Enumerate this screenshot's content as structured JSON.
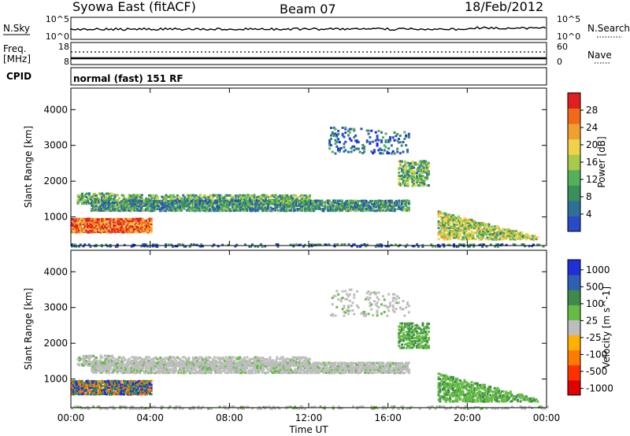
{
  "header": {
    "station": "Syowa East (fitACF)",
    "beam": "Beam 07",
    "date": "18/Feb/2012"
  },
  "top_panel": {
    "left_label": "N.Sky",
    "right_label": "N.Search",
    "y_ticks_left": [
      "10^5",
      "10^0"
    ],
    "y_ticks_right": [
      "10^5",
      "10^0"
    ]
  },
  "freq_panel": {
    "left_label_line1": "Freq.",
    "left_label_line2": "[MHz]",
    "right_label": "Nave",
    "y_ticks_left": [
      "18",
      "8"
    ],
    "y_ticks_right": [
      "60",
      "0"
    ]
  },
  "cpid": {
    "label": "CPID",
    "value": "normal (fast) 151 RF"
  },
  "colors": {
    "power_scale": [
      "#1f20f0",
      "#2a4bc8",
      "#2f6f9a",
      "#3b8f5a",
      "#55b05a",
      "#a9c94a",
      "#f0d24a",
      "#f0a030",
      "#f06a1a",
      "#e02020"
    ],
    "velocity_scale": [
      "#2030d8",
      "#2f5fb0",
      "#3f8a4a",
      "#66bb44",
      "#bdbdbd",
      "#ffb000",
      "#ff7a00",
      "#ff3000",
      "#e00000"
    ]
  },
  "chart_data": [
    {
      "type": "heatmap",
      "title": "",
      "xlabel": "Time UT",
      "ylabel": "Slant Range [km]",
      "x_ticks": [
        "00:00",
        "04:00",
        "08:00",
        "12:00",
        "16:00",
        "20:00",
        "00:00"
      ],
      "y_ticks": [
        "1000",
        "2000",
        "3000",
        "4000"
      ],
      "ylim": [
        200,
        4600
      ],
      "colorbar": {
        "label": "Power [dB]",
        "ticks": [
          "4",
          "8",
          "12",
          "16",
          "20",
          "24",
          "28"
        ],
        "range": [
          0,
          30
        ]
      }
    },
    {
      "type": "heatmap",
      "title": "",
      "xlabel": "Time UT",
      "ylabel": "Slant Range [km]",
      "x_ticks": [
        "00:00",
        "04:00",
        "08:00",
        "12:00",
        "16:00",
        "20:00",
        "00:00"
      ],
      "y_ticks": [
        "1000",
        "2000",
        "3000",
        "4000"
      ],
      "ylim": [
        200,
        4600
      ],
      "colorbar": {
        "label": "Velocity [m s^-1]",
        "ticks": [
          "1000",
          "500",
          "100",
          "25",
          "-25",
          "-100",
          "-500",
          "-1000"
        ],
        "range": [
          -1000,
          1000
        ]
      }
    }
  ]
}
